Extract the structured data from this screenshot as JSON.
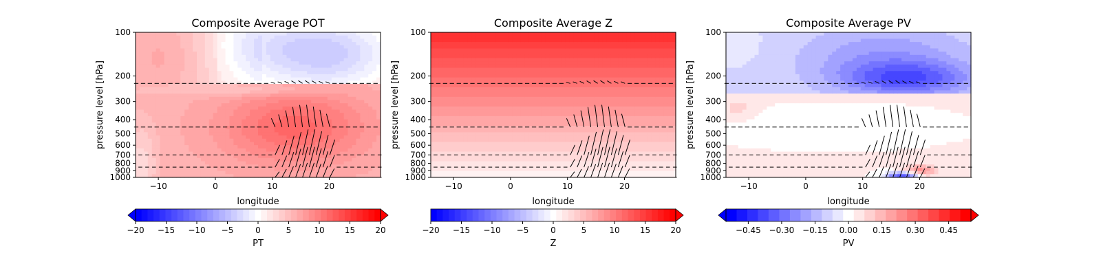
{
  "chart_data": [
    {
      "type": "heatmap",
      "title": "Composite Average POT",
      "xlabel": "longitude",
      "ylabel": "pressure level [hPa]",
      "xlim": [
        -14,
        29
      ],
      "ylim": [
        1000,
        100
      ],
      "yscale": "log",
      "xticks": [
        -10,
        0,
        10,
        20
      ],
      "yticks": [
        100,
        200,
        300,
        400,
        500,
        600,
        700,
        800,
        900,
        1000
      ],
      "field": "pot",
      "vectors": true,
      "colorbar": {
        "label": "PT",
        "min": -20,
        "max": 20,
        "levels": 41,
        "extend": "both",
        "ticks": [
          -20,
          -15,
          -10,
          -5,
          0,
          5,
          10,
          15,
          20
        ],
        "tick_labels": [
          "−20",
          "−15",
          "−10",
          "−5",
          "0",
          "5",
          "10",
          "15",
          "20"
        ]
      }
    },
    {
      "type": "heatmap",
      "title": "Composite Average Z",
      "xlabel": "longitude",
      "ylabel": "pressure level [hPa]",
      "xlim": [
        -14,
        29
      ],
      "ylim": [
        1000,
        100
      ],
      "yscale": "log",
      "xticks": [
        -10,
        0,
        10,
        20
      ],
      "yticks": [
        100,
        200,
        300,
        400,
        500,
        600,
        700,
        800,
        900,
        1000
      ],
      "field": "z",
      "vectors": true,
      "colorbar": {
        "label": "Z",
        "min": -20,
        "max": 20,
        "levels": 41,
        "extend": "max",
        "ticks": [
          -20,
          -15,
          -10,
          -5,
          0,
          5,
          10,
          15,
          20
        ],
        "tick_labels": [
          "−20",
          "−15",
          "−10",
          "−5",
          "0",
          "5",
          "10",
          "15",
          "20"
        ]
      }
    },
    {
      "type": "heatmap",
      "title": "Composite Average PV",
      "xlabel": "longitude",
      "ylabel": "pressure level [hPa]",
      "xlim": [
        -14,
        29
      ],
      "ylim": [
        1000,
        100
      ],
      "yscale": "log",
      "xticks": [
        -10,
        0,
        10,
        20
      ],
      "yticks": [
        100,
        200,
        300,
        400,
        500,
        600,
        700,
        800,
        900,
        1000
      ],
      "field": "pv",
      "vectors": true,
      "colorbar": {
        "label": "PV",
        "min": -0.55,
        "max": 0.55,
        "levels": 23,
        "extend": "both",
        "ticks": [
          -0.45,
          -0.3,
          -0.15,
          0.0,
          0.15,
          0.3,
          0.45
        ],
        "tick_labels": [
          "−0.45",
          "−0.30",
          "−0.15",
          "0.00",
          "0.15",
          "0.30",
          "0.45"
        ]
      }
    }
  ]
}
